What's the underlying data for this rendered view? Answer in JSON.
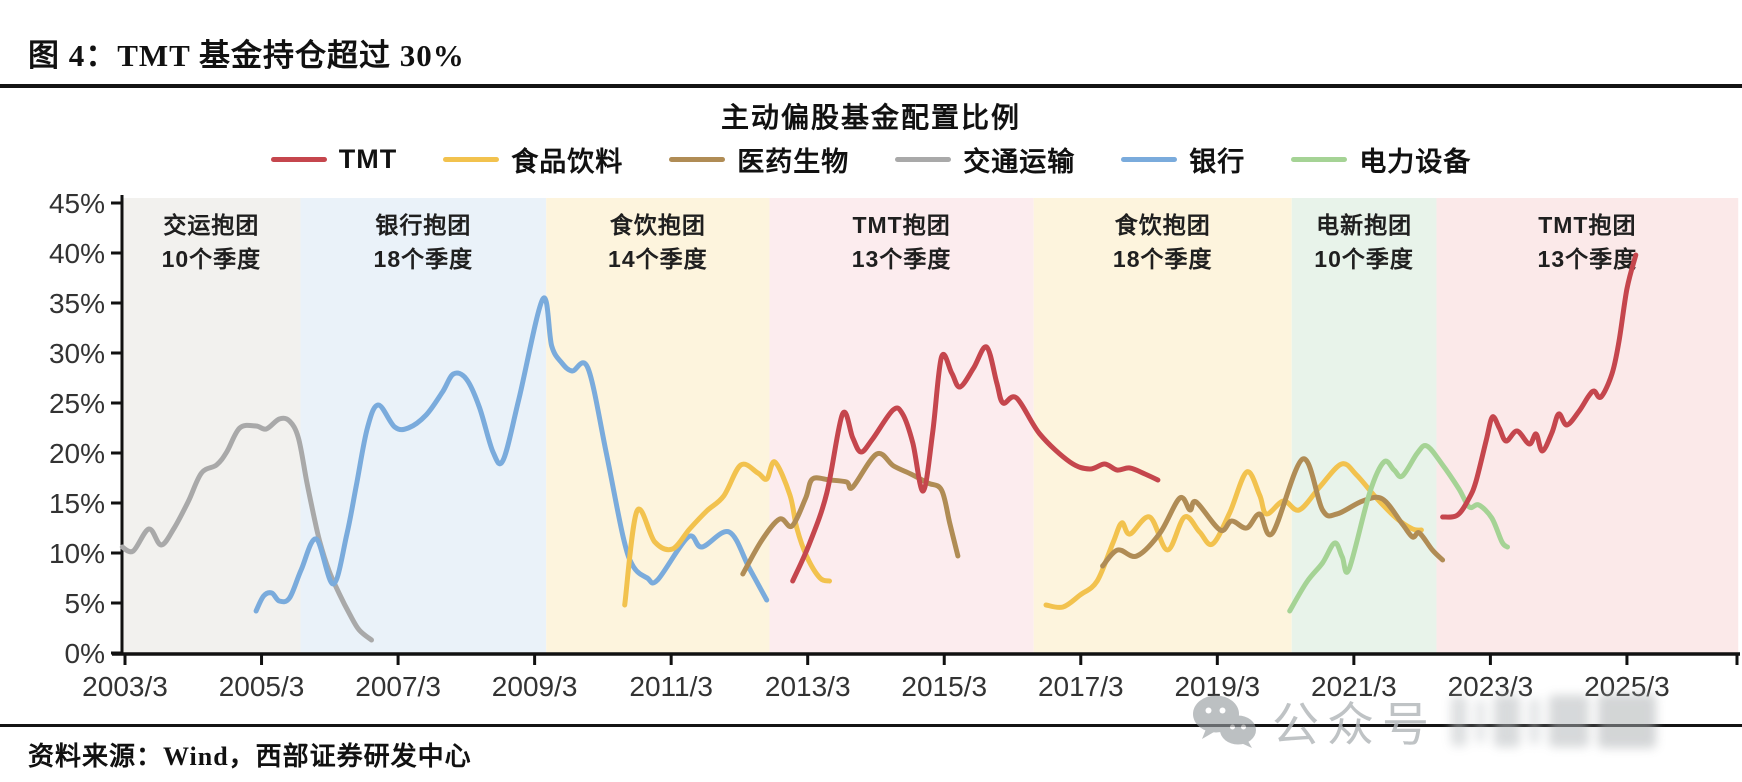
{
  "figure": {
    "title": "图 4：TMT 基金持仓超过 30%"
  },
  "source_note": "资料来源：Wind，西部证券研发中心",
  "watermark": {
    "icon": "wechat-icon",
    "label": "公众号"
  },
  "legend": {
    "items": [
      {
        "label": "TMT",
        "color": "#c5464d"
      },
      {
        "label": "食品饮料",
        "color": "#f2c24e"
      },
      {
        "label": "医药生物",
        "color": "#b08c55"
      },
      {
        "label": "交通运输",
        "color": "#a9a9a9"
      },
      {
        "label": "银行",
        "color": "#7aabdc"
      },
      {
        "label": "电力设备",
        "color": "#a5d395"
      }
    ]
  },
  "chart_data": {
    "type": "line",
    "title": "主动偏股基金配置比例",
    "y_axis": {
      "min": 0,
      "max": 45,
      "step": 5,
      "suffix": "%"
    },
    "x_axis": {
      "range": [
        2003.2,
        2026.88
      ],
      "ticks": [
        {
          "label": "2003/3",
          "t": 2003.25
        },
        {
          "label": "2005/3",
          "t": 2005.25
        },
        {
          "label": "2007/3",
          "t": 2007.25
        },
        {
          "label": "2009/3",
          "t": 2009.25
        },
        {
          "label": "2011/3",
          "t": 2011.25
        },
        {
          "label": "2013/3",
          "t": 2013.25
        },
        {
          "label": "2015/3",
          "t": 2015.25
        },
        {
          "label": "2017/3",
          "t": 2017.25
        },
        {
          "label": "2019/3",
          "t": 2019.25
        },
        {
          "label": "2021/3",
          "t": 2021.25
        },
        {
          "label": "2023/3",
          "t": 2023.25
        },
        {
          "label": "2025/3",
          "t": 2025.25
        }
      ]
    },
    "bands": [
      {
        "from": 2003.21,
        "to": 2005.82,
        "fill": "#f2f1ee",
        "line1": "交运抱团",
        "line2": "10个季度"
      },
      {
        "from": 2005.82,
        "to": 2009.42,
        "fill": "#eaf2f9",
        "line1": "银行抱团",
        "line2": "18个季度"
      },
      {
        "from": 2009.42,
        "to": 2012.69,
        "fill": "#fdf4dd",
        "line1": "食饮抱团",
        "line2": "14个季度"
      },
      {
        "from": 2012.69,
        "to": 2016.56,
        "fill": "#fcecee",
        "line1": "TMT抱团",
        "line2": "13个季度"
      },
      {
        "from": 2016.56,
        "to": 2020.34,
        "fill": "#fdf4dd",
        "line1": "食饮抱团",
        "line2": "18个季度"
      },
      {
        "from": 2020.34,
        "to": 2022.46,
        "fill": "#e8f3ea",
        "line1": "电新抱团",
        "line2": "10个季度"
      },
      {
        "from": 2022.46,
        "to": 2026.88,
        "fill": "#fbe9e9",
        "line1": "TMT抱团",
        "line2": "13个季度"
      }
    ],
    "series": [
      {
        "name": "交通运输",
        "color": "#a9a9a9",
        "segments": [
          [
            [
              2003.21,
              10.6
            ],
            [
              2003.37,
              10.2
            ],
            [
              2003.6,
              12.4
            ],
            [
              2003.78,
              10.8
            ],
            [
              2003.97,
              12.5
            ],
            [
              2004.18,
              15.2
            ],
            [
              2004.37,
              18.0
            ],
            [
              2004.59,
              18.8
            ],
            [
              2004.74,
              20.1
            ],
            [
              2004.93,
              22.5
            ],
            [
              2005.17,
              22.7
            ],
            [
              2005.32,
              22.4
            ],
            [
              2005.51,
              23.4
            ],
            [
              2005.66,
              23.2
            ],
            [
              2005.79,
              21.5
            ],
            [
              2005.91,
              17.2
            ],
            [
              2006.01,
              13.9
            ],
            [
              2006.1,
              11.2
            ],
            [
              2006.24,
              8.2
            ],
            [
              2006.39,
              5.9
            ],
            [
              2006.54,
              3.9
            ],
            [
              2006.68,
              2.3
            ],
            [
              2006.86,
              1.3
            ]
          ]
        ]
      },
      {
        "name": "银行",
        "color": "#7aabdc",
        "segments": [
          [
            [
              2005.17,
              4.2
            ],
            [
              2005.28,
              5.7
            ],
            [
              2005.4,
              6.0
            ],
            [
              2005.51,
              5.2
            ],
            [
              2005.66,
              5.5
            ],
            [
              2005.83,
              8.3
            ],
            [
              2006.05,
              11.4
            ],
            [
              2006.3,
              6.9
            ],
            [
              2006.5,
              11.9
            ],
            [
              2006.64,
              16.8
            ],
            [
              2006.8,
              22.5
            ],
            [
              2006.96,
              24.8
            ],
            [
              2007.2,
              22.6
            ],
            [
              2007.4,
              22.5
            ],
            [
              2007.66,
              23.8
            ],
            [
              2007.9,
              26.1
            ],
            [
              2008.06,
              27.9
            ],
            [
              2008.25,
              27.4
            ],
            [
              2008.44,
              24.6
            ],
            [
              2008.64,
              20.1
            ],
            [
              2008.79,
              19.3
            ],
            [
              2009.02,
              25.4
            ],
            [
              2009.37,
              35.4
            ],
            [
              2009.5,
              30.7
            ],
            [
              2009.65,
              29.0
            ],
            [
              2009.8,
              28.2
            ],
            [
              2010.03,
              28.5
            ],
            [
              2010.3,
              20.0
            ],
            [
              2010.55,
              11.5
            ],
            [
              2010.7,
              8.6
            ],
            [
              2010.9,
              7.5
            ],
            [
              2011.05,
              7.3
            ],
            [
              2011.5,
              11.6
            ],
            [
              2011.7,
              10.6
            ],
            [
              2012.1,
              12.1
            ],
            [
              2012.4,
              8.4
            ],
            [
              2012.65,
              5.3
            ]
          ]
        ]
      },
      {
        "name": "食品饮料",
        "color": "#f2c24e",
        "segments": [
          [
            [
              2010.57,
              4.8
            ],
            [
              2010.75,
              14.2
            ],
            [
              2011.01,
              11.1
            ],
            [
              2011.27,
              10.4
            ],
            [
              2011.52,
              12.4
            ],
            [
              2011.77,
              14.2
            ],
            [
              2012.02,
              15.7
            ],
            [
              2012.27,
              18.8
            ],
            [
              2012.52,
              18.0
            ],
            [
              2012.65,
              17.4
            ],
            [
              2012.77,
              19.1
            ],
            [
              2012.99,
              15.8
            ],
            [
              2013.09,
              12.5
            ],
            [
              2013.24,
              9.6
            ],
            [
              2013.43,
              7.5
            ],
            [
              2013.57,
              7.2
            ]
          ],
          [
            [
              2016.74,
              4.8
            ],
            [
              2016.99,
              4.6
            ],
            [
              2017.24,
              5.8
            ],
            [
              2017.49,
              7.2
            ],
            [
              2017.72,
              11.0
            ],
            [
              2017.85,
              13.0
            ],
            [
              2017.97,
              11.9
            ],
            [
              2018.26,
              13.6
            ],
            [
              2018.52,
              10.3
            ],
            [
              2018.77,
              13.6
            ],
            [
              2018.99,
              12.1
            ],
            [
              2019.18,
              10.9
            ],
            [
              2019.43,
              14.0
            ],
            [
              2019.68,
              18.1
            ],
            [
              2019.87,
              15.8
            ],
            [
              2019.97,
              13.9
            ],
            [
              2020.22,
              15.2
            ],
            [
              2020.45,
              14.3
            ],
            [
              2020.75,
              16.6
            ],
            [
              2021.07,
              18.9
            ],
            [
              2021.29,
              17.8
            ],
            [
              2021.58,
              15.5
            ],
            [
              2021.87,
              13.5
            ],
            [
              2022.11,
              12.4
            ],
            [
              2022.24,
              12.3
            ]
          ]
        ]
      },
      {
        "name": "医药生物",
        "color": "#b08c55",
        "segments": [
          [
            [
              2012.3,
              7.9
            ],
            [
              2012.58,
              11.3
            ],
            [
              2012.84,
              13.4
            ],
            [
              2013.02,
              12.7
            ],
            [
              2013.22,
              15.5
            ],
            [
              2013.32,
              17.4
            ],
            [
              2013.57,
              17.3
            ],
            [
              2013.82,
              17.1
            ],
            [
              2013.91,
              16.6
            ],
            [
              2014.26,
              19.9
            ],
            [
              2014.51,
              18.7
            ],
            [
              2014.76,
              17.9
            ],
            [
              2015.01,
              17.0
            ],
            [
              2015.21,
              16.3
            ],
            [
              2015.33,
              13.0
            ],
            [
              2015.45,
              9.7
            ]
          ],
          [
            [
              2017.57,
              8.7
            ],
            [
              2017.79,
              10.3
            ],
            [
              2018.07,
              9.7
            ],
            [
              2018.41,
              12.0
            ],
            [
              2018.7,
              15.5
            ],
            [
              2018.85,
              14.3
            ],
            [
              2018.94,
              15.1
            ],
            [
              2019.29,
              12.3
            ],
            [
              2019.46,
              13.2
            ],
            [
              2019.68,
              12.5
            ],
            [
              2019.87,
              13.9
            ],
            [
              2020.06,
              12.0
            ],
            [
              2020.5,
              19.4
            ],
            [
              2020.79,
              14.3
            ],
            [
              2021.0,
              13.9
            ],
            [
              2021.38,
              15.2
            ],
            [
              2021.67,
              15.4
            ],
            [
              2021.96,
              12.9
            ],
            [
              2022.11,
              11.6
            ],
            [
              2022.21,
              12.0
            ],
            [
              2022.4,
              10.3
            ],
            [
              2022.55,
              9.3
            ]
          ]
        ]
      },
      {
        "name": "电力设备",
        "color": "#a5d395",
        "segments": [
          [
            [
              2020.31,
              4.2
            ],
            [
              2020.56,
              7.1
            ],
            [
              2020.79,
              9.0
            ],
            [
              2020.97,
              11.0
            ],
            [
              2021.08,
              9.6
            ],
            [
              2021.18,
              8.4
            ],
            [
              2021.48,
              16.0
            ],
            [
              2021.69,
              19.1
            ],
            [
              2021.84,
              18.3
            ],
            [
              2021.96,
              17.7
            ],
            [
              2022.18,
              20.0
            ],
            [
              2022.32,
              20.7
            ],
            [
              2022.54,
              18.9
            ],
            [
              2022.79,
              16.4
            ],
            [
              2022.94,
              14.6
            ],
            [
              2023.08,
              14.8
            ],
            [
              2023.27,
              13.5
            ],
            [
              2023.42,
              11.1
            ],
            [
              2023.5,
              10.6
            ]
          ]
        ]
      },
      {
        "name": "TMT",
        "color": "#c5464d",
        "segments": [
          [
            [
              2013.03,
              7.2
            ],
            [
              2013.28,
              11.0
            ],
            [
              2013.53,
              16.0
            ],
            [
              2013.76,
              23.9
            ],
            [
              2013.91,
              21.5
            ],
            [
              2014.03,
              20.1
            ],
            [
              2014.2,
              21.4
            ],
            [
              2014.5,
              24.3
            ],
            [
              2014.64,
              23.9
            ],
            [
              2014.79,
              21.0
            ],
            [
              2014.94,
              16.2
            ],
            [
              2015.08,
              22.0
            ],
            [
              2015.21,
              29.6
            ],
            [
              2015.36,
              28.0
            ],
            [
              2015.48,
              26.6
            ],
            [
              2015.68,
              28.5
            ],
            [
              2015.87,
              30.6
            ],
            [
              2016.02,
              27.0
            ],
            [
              2016.11,
              25.0
            ],
            [
              2016.31,
              25.5
            ],
            [
              2016.65,
              21.9
            ],
            [
              2017.09,
              19.1
            ],
            [
              2017.38,
              18.4
            ],
            [
              2017.6,
              18.9
            ],
            [
              2017.78,
              18.3
            ],
            [
              2017.97,
              18.5
            ],
            [
              2018.19,
              17.9
            ],
            [
              2018.38,
              17.3
            ]
          ],
          [
            [
              2022.55,
              13.6
            ],
            [
              2022.77,
              13.8
            ],
            [
              2022.94,
              15.5
            ],
            [
              2023.04,
              17.2
            ],
            [
              2023.19,
              21.3
            ],
            [
              2023.28,
              23.6
            ],
            [
              2023.38,
              22.5
            ],
            [
              2023.48,
              21.2
            ],
            [
              2023.64,
              22.2
            ],
            [
              2023.82,
              20.9
            ],
            [
              2023.92,
              21.9
            ],
            [
              2024.01,
              20.2
            ],
            [
              2024.15,
              22.0
            ],
            [
              2024.25,
              23.9
            ],
            [
              2024.37,
              22.8
            ],
            [
              2024.55,
              24.2
            ],
            [
              2024.69,
              25.7
            ],
            [
              2024.77,
              26.2
            ],
            [
              2024.87,
              25.6
            ],
            [
              2025.03,
              27.9
            ],
            [
              2025.13,
              31.0
            ],
            [
              2025.25,
              36.4
            ],
            [
              2025.38,
              39.8
            ]
          ]
        ]
      }
    ]
  }
}
